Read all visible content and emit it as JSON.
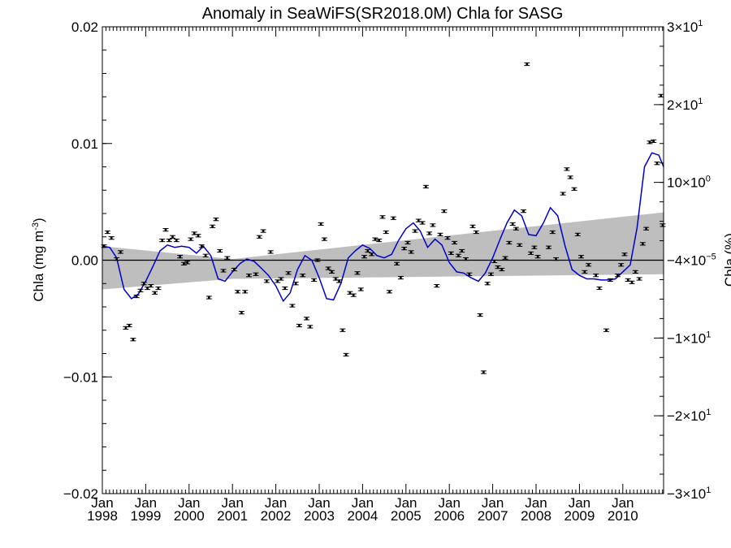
{
  "chart_data": {
    "type": "scatter",
    "title": "Anomaly in SeaWiFS(SR2018.0M) Chla for SASG",
    "ylabel": "Chla (mg m",
    "ylabel_sup": "-3",
    "ylabel_close": ")",
    "y2label": "Chla (%)",
    "xlim": [
      1998.0,
      2010.94
    ],
    "ylim": [
      -0.02,
      0.02
    ],
    "y_ticks": [
      -0.02,
      -0.01,
      0.0,
      0.01,
      0.02
    ],
    "y_tick_labels": [
      "−0.02",
      "−0.01",
      "0.00",
      "0.01",
      "0.02"
    ],
    "y2_ticks": [
      -0.02,
      -0.01,
      0.0,
      0.01,
      0.02
    ],
    "y2_tick_labels": [
      {
        "base": "−3×10",
        "exp": "1"
      },
      {
        "base": "−2×10",
        "exp": "1"
      },
      {
        "base": "−1×10",
        "exp": "1"
      },
      {
        "base": "−4×10",
        "exp": "−5"
      },
      {
        "base": "10×10",
        "exp": "0"
      },
      {
        "base": "2×10",
        "exp": "1"
      },
      {
        "base": "3×10",
        "exp": "1"
      }
    ],
    "y2_tick_values": [
      -0.02,
      -0.01333,
      -0.00667,
      0.0,
      0.00667,
      0.01333,
      0.02
    ],
    "x_ticks": [
      {
        "x": 1998.0,
        "month": "Jan",
        "year": "1998"
      },
      {
        "x": 1999.0,
        "month": "Jan",
        "year": "1999"
      },
      {
        "x": 2000.0,
        "month": "Jan",
        "year": "2000"
      },
      {
        "x": 2001.0,
        "month": "Jan",
        "year": "2001"
      },
      {
        "x": 2002.0,
        "month": "Jan",
        "year": "2002"
      },
      {
        "x": 2003.0,
        "month": "Jan",
        "year": "2003"
      },
      {
        "x": 2004.0,
        "month": "Jan",
        "year": "2004"
      },
      {
        "x": 2005.0,
        "month": "Jan",
        "year": "2005"
      },
      {
        "x": 2006.0,
        "month": "Jan",
        "year": "2006"
      },
      {
        "x": 2007.0,
        "month": "Jan",
        "year": "2007"
      },
      {
        "x": 2008.0,
        "month": "Jan",
        "year": "2008"
      },
      {
        "x": 2009.0,
        "month": "Jan",
        "year": "2009"
      },
      {
        "x": 2010.0,
        "month": "Jan",
        "year": "2010"
      }
    ],
    "grid": false,
    "zero_line": 0.0,
    "trend_band": {
      "x": [
        1998.0,
        2001.0,
        2010.94
      ],
      "upper": [
        0.0012,
        0.0001,
        0.0041
      ],
      "lower": [
        -0.0025,
        -0.0016,
        -0.0012
      ]
    },
    "smooth_color": "#0000cc",
    "band_color": "#bebebe",
    "smooth_series": {
      "x": [
        1998.0,
        1998.17,
        1998.33,
        1998.5,
        1998.67,
        1998.83,
        1999.0,
        1999.17,
        1999.33,
        1999.5,
        1999.67,
        1999.83,
        2000.0,
        2000.17,
        2000.33,
        2000.5,
        2000.67,
        2000.83,
        2001.0,
        2001.17,
        2001.33,
        2001.5,
        2001.67,
        2001.83,
        2002.0,
        2002.17,
        2002.33,
        2002.5,
        2002.67,
        2002.83,
        2003.0,
        2003.17,
        2003.33,
        2003.5,
        2003.67,
        2003.83,
        2004.0,
        2004.17,
        2004.33,
        2004.5,
        2004.67,
        2004.83,
        2005.0,
        2005.17,
        2005.33,
        2005.5,
        2005.67,
        2005.83,
        2006.0,
        2006.17,
        2006.33,
        2006.5,
        2006.67,
        2006.83,
        2007.0,
        2007.17,
        2007.33,
        2007.5,
        2007.67,
        2007.83,
        2008.0,
        2008.17,
        2008.33,
        2008.5,
        2008.67,
        2008.83,
        2009.0,
        2009.17,
        2009.33,
        2009.5,
        2009.67,
        2009.83,
        2010.0,
        2010.17,
        2010.33,
        2010.5,
        2010.67,
        2010.83,
        2010.94
      ],
      "y": [
        0.0012,
        0.0011,
        0.0002,
        -0.0025,
        -0.0033,
        -0.0029,
        -0.0018,
        -0.0005,
        0.0008,
        0.0013,
        0.0011,
        0.0012,
        0.0011,
        0.0006,
        0.0012,
        0.0004,
        -0.0016,
        -0.0018,
        -0.001,
        -0.0003,
        0.0001,
        -0.0001,
        -0.0007,
        -0.0013,
        -0.0022,
        -0.0035,
        -0.0028,
        -0.0008,
        0.0004,
        0.0,
        -0.0015,
        -0.0033,
        -0.0034,
        -0.002,
        0.0002,
        0.0008,
        0.0013,
        0.001,
        0.0004,
        0.0002,
        0.0005,
        0.0017,
        0.0027,
        0.0032,
        0.0025,
        0.0011,
        0.0018,
        0.0013,
        -0.0002,
        -0.001,
        -0.0011,
        -0.0015,
        -0.0018,
        -0.0011,
        0.0002,
        0.0018,
        0.0032,
        0.0043,
        0.0038,
        0.0022,
        0.0021,
        0.0032,
        0.0045,
        0.0038,
        0.0012,
        -0.0008,
        -0.0013,
        -0.0016,
        -0.0016,
        -0.0017,
        -0.0017,
        -0.0016,
        -0.001,
        -0.0004,
        0.0028,
        0.008,
        0.0092,
        0.009,
        0.008
      ]
    },
    "points": [
      [
        1998.04,
        0.0012
      ],
      [
        1998.12,
        0.0024
      ],
      [
        1998.21,
        0.0019
      ],
      [
        1998.33,
        0.0001
      ],
      [
        1998.42,
        0.0007
      ],
      [
        1998.54,
        -0.0058
      ],
      [
        1998.62,
        -0.0056
      ],
      [
        1998.71,
        -0.0068
      ],
      [
        1998.79,
        -0.0031
      ],
      [
        1998.88,
        -0.0026
      ],
      [
        1998.96,
        -0.002
      ],
      [
        1999.04,
        -0.0024
      ],
      [
        1999.12,
        -0.0022
      ],
      [
        1999.21,
        -0.0028
      ],
      [
        1999.29,
        -0.0024
      ],
      [
        1999.38,
        0.0017
      ],
      [
        1999.46,
        0.0026
      ],
      [
        1999.54,
        0.0017
      ],
      [
        1999.62,
        0.002
      ],
      [
        1999.71,
        0.0017
      ],
      [
        1999.79,
        0.0003
      ],
      [
        1999.88,
        -0.0003
      ],
      [
        1999.96,
        -0.0002
      ],
      [
        2000.04,
        0.0018
      ],
      [
        2000.12,
        0.0023
      ],
      [
        2000.21,
        0.0021
      ],
      [
        2000.29,
        0.0012
      ],
      [
        2000.38,
        0.0004
      ],
      [
        2000.46,
        -0.0032
      ],
      [
        2000.54,
        0.0029
      ],
      [
        2000.62,
        0.0035
      ],
      [
        2000.71,
        0.0008
      ],
      [
        2000.79,
        -0.0009
      ],
      [
        2000.88,
        0.0002
      ],
      [
        2001.04,
        -0.0008
      ],
      [
        2001.12,
        -0.0027
      ],
      [
        2001.21,
        -0.0045
      ],
      [
        2001.29,
        -0.0027
      ],
      [
        2001.38,
        -0.0013
      ],
      [
        2001.54,
        -0.0012
      ],
      [
        2001.62,
        0.002
      ],
      [
        2001.71,
        0.0025
      ],
      [
        2001.79,
        -0.0018
      ],
      [
        2001.88,
        0.0007
      ],
      [
        2002.04,
        -0.0018
      ],
      [
        2002.12,
        -0.0016
      ],
      [
        2002.21,
        -0.0024
      ],
      [
        2002.29,
        -0.0011
      ],
      [
        2002.38,
        -0.0039
      ],
      [
        2002.46,
        -0.002
      ],
      [
        2002.54,
        -0.0056
      ],
      [
        2002.62,
        -0.0013
      ],
      [
        2002.71,
        -0.005
      ],
      [
        2002.79,
        -0.0057
      ],
      [
        2002.88,
        -0.0017
      ],
      [
        2002.96,
        0.0
      ],
      [
        2003.04,
        0.0031
      ],
      [
        2003.12,
        0.0018
      ],
      [
        2003.21,
        -0.0007
      ],
      [
        2003.29,
        -0.001
      ],
      [
        2003.38,
        -0.0016
      ],
      [
        2003.46,
        -0.0018
      ],
      [
        2003.54,
        -0.006
      ],
      [
        2003.62,
        -0.0081
      ],
      [
        2003.71,
        -0.0028
      ],
      [
        2003.79,
        -0.003
      ],
      [
        2003.88,
        -0.0011
      ],
      [
        2003.96,
        -0.0025
      ],
      [
        2004.04,
        0.0003
      ],
      [
        2004.12,
        0.0008
      ],
      [
        2004.21,
        0.0005
      ],
      [
        2004.29,
        0.0018
      ],
      [
        2004.38,
        0.0017
      ],
      [
        2004.46,
        0.0037
      ],
      [
        2004.54,
        0.0024
      ],
      [
        2004.62,
        -0.0027
      ],
      [
        2004.71,
        0.0036
      ],
      [
        2004.79,
        -0.0003
      ],
      [
        2004.88,
        -0.0015
      ],
      [
        2004.96,
        0.001
      ],
      [
        2005.04,
        0.0015
      ],
      [
        2005.12,
        0.0007
      ],
      [
        2005.21,
        0.0025
      ],
      [
        2005.29,
        0.0034
      ],
      [
        2005.38,
        0.0032
      ],
      [
        2005.46,
        0.0063
      ],
      [
        2005.54,
        0.0023
      ],
      [
        2005.62,
        0.003
      ],
      [
        2005.71,
        -0.0022
      ],
      [
        2005.79,
        0.0022
      ],
      [
        2005.88,
        0.0042
      ],
      [
        2005.96,
        0.0019
      ],
      [
        2006.04,
        0.0006
      ],
      [
        2006.12,
        0.0015
      ],
      [
        2006.21,
        0.0004
      ],
      [
        2006.29,
        0.0008
      ],
      [
        2006.38,
        0.0001
      ],
      [
        2006.46,
        -0.0012
      ],
      [
        2006.54,
        0.0029
      ],
      [
        2006.62,
        0.0024
      ],
      [
        2006.71,
        -0.0047
      ],
      [
        2006.79,
        -0.0096
      ],
      [
        2006.88,
        -0.002
      ],
      [
        2006.96,
        -0.0012
      ],
      [
        2007.04,
        -0.0001
      ],
      [
        2007.12,
        -0.0006
      ],
      [
        2007.21,
        -0.0008
      ],
      [
        2007.29,
        0.0002
      ],
      [
        2007.38,
        0.0015
      ],
      [
        2007.46,
        0.0031
      ],
      [
        2007.54,
        0.0027
      ],
      [
        2007.62,
        0.0013
      ],
      [
        2007.71,
        0.0042
      ],
      [
        2007.79,
        0.0168
      ],
      [
        2007.88,
        0.0006
      ],
      [
        2007.96,
        0.0011
      ],
      [
        2008.04,
        0.0003
      ],
      [
        2008.29,
        0.0011
      ],
      [
        2008.38,
        0.0024
      ],
      [
        2008.46,
        0.0001
      ],
      [
        2008.62,
        0.0057
      ],
      [
        2008.71,
        0.0078
      ],
      [
        2008.79,
        0.0071
      ],
      [
        2008.88,
        0.0061
      ],
      [
        2008.96,
        0.0022
      ],
      [
        2009.04,
        0.0003
      ],
      [
        2009.12,
        -0.001
      ],
      [
        2009.21,
        -0.0004
      ],
      [
        2009.38,
        -0.0013
      ],
      [
        2009.46,
        -0.0024
      ],
      [
        2009.62,
        -0.006
      ],
      [
        2009.71,
        -0.0017
      ],
      [
        2009.88,
        -0.0013
      ],
      [
        2009.96,
        -0.0004
      ],
      [
        2010.04,
        0.0005
      ],
      [
        2010.12,
        -0.0017
      ],
      [
        2010.21,
        -0.0019
      ],
      [
        2010.29,
        -0.001
      ],
      [
        2010.38,
        -0.0016
      ],
      [
        2010.46,
        0.0014
      ],
      [
        2010.54,
        0.0027
      ],
      [
        2010.62,
        0.0101
      ],
      [
        2010.71,
        0.0102
      ],
      [
        2010.79,
        0.0083
      ],
      [
        2010.88,
        0.0141
      ],
      [
        2010.92,
        0.003
      ]
    ]
  }
}
